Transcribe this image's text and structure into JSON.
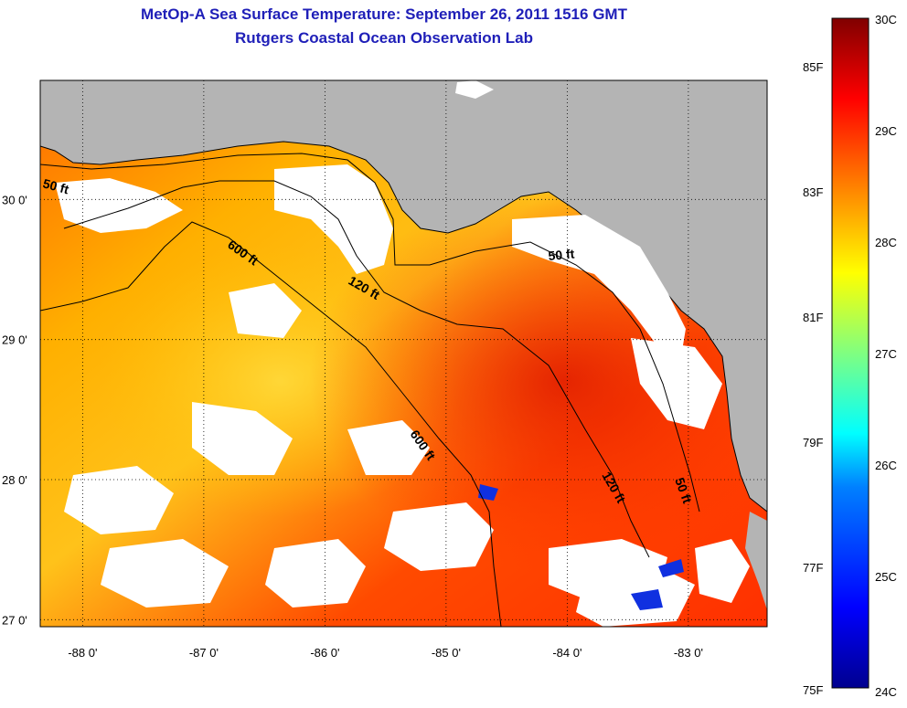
{
  "title": {
    "line1": "MetOp-A Sea Surface Temperature:  September 26, 2011 1516 GMT",
    "line2": "Rutgers Coastal Ocean Observation Lab"
  },
  "map": {
    "longitude_ticks": [
      "-88 0'",
      "-87 0'",
      "-86 0'",
      "-85 0'",
      "-84 0'",
      "-83 0'"
    ],
    "latitude_ticks": [
      "30 0'",
      "29 0'",
      "28 0'",
      "27 0'"
    ],
    "longitude_values": [
      -88,
      -87,
      -86,
      -85,
      -84,
      -83
    ],
    "latitude_values": [
      30,
      29,
      28,
      27
    ],
    "lon_range": [
      -88.35,
      -82.35
    ],
    "lat_range": [
      26.95,
      30.85
    ],
    "land_color": "#b4b4b4",
    "cloud_color": "#ffffff",
    "isobath_labels": [
      "50 ft",
      "600 ft",
      "120 ft",
      "50 ft",
      "600 ft",
      "120 ft",
      "50 ft"
    ]
  },
  "colorbar": {
    "fahrenheit_labels": [
      "85F",
      "83F",
      "81F",
      "79F",
      "77F",
      "75F"
    ],
    "celsius_labels": [
      "30C",
      "29C",
      "28C",
      "27C",
      "26C",
      "25C",
      "24C"
    ],
    "colors": [
      "#00008f",
      "#0000ff",
      "#0080ff",
      "#00ffff",
      "#80ff80",
      "#ffff00",
      "#ff8000",
      "#ff0000",
      "#800000"
    ]
  }
}
